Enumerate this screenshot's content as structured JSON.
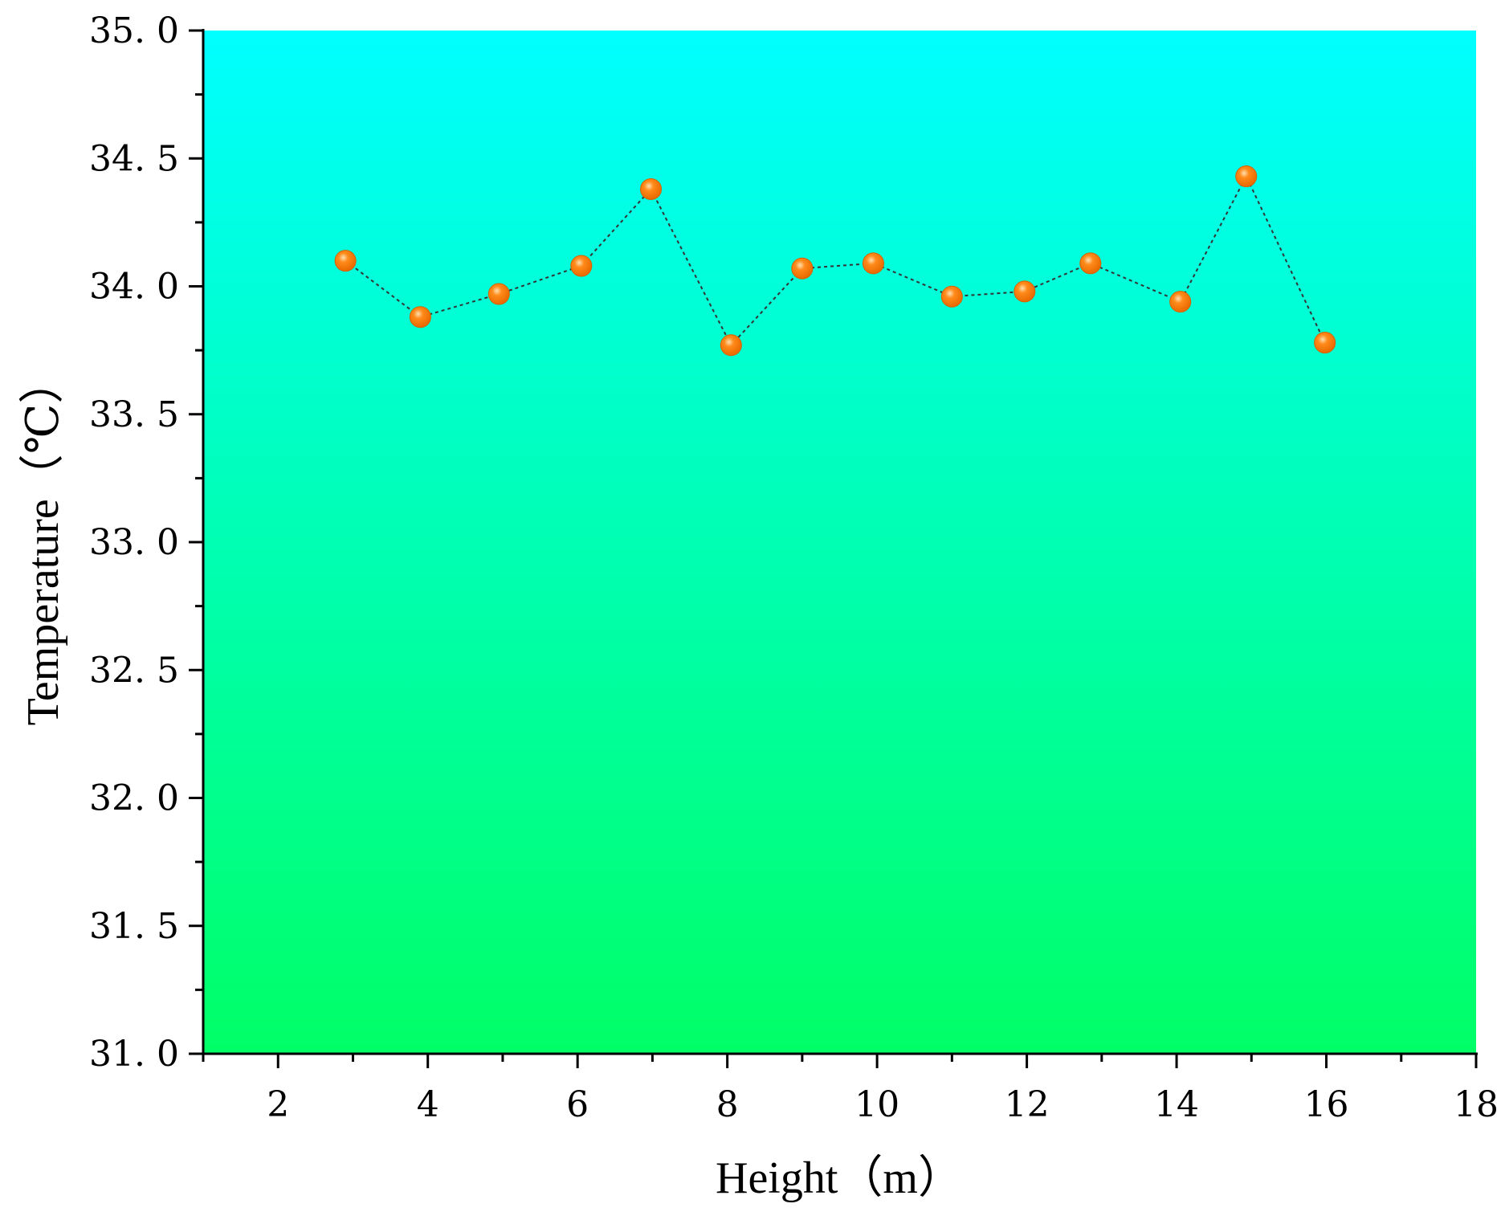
{
  "chart_data": {
    "type": "scatter",
    "xlabel": "Height（m）",
    "ylabel": "Temperature（℃）",
    "xlim": [
      1,
      18
    ],
    "ylim": [
      31.0,
      35.0
    ],
    "x_ticks": [
      2,
      4,
      6,
      8,
      10,
      12,
      14,
      16,
      18
    ],
    "x_tick_labels": [
      "2",
      "4",
      "6",
      "8",
      "10",
      "12",
      "14",
      "16",
      "18"
    ],
    "y_ticks": [
      31.0,
      31.5,
      32.0,
      32.5,
      33.0,
      33.5,
      34.0,
      34.5,
      35.0
    ],
    "y_tick_labels": [
      "31. 0",
      "31. 5",
      "32. 0",
      "32. 5",
      "33. 0",
      "33. 5",
      "34. 0",
      "34. 5",
      "35. 0"
    ],
    "grid": false,
    "connector": "dotted",
    "series": [
      {
        "x": [
          2.9,
          3.9,
          4.95,
          6.05,
          6.98,
          8.05,
          9.0,
          9.95,
          11.0,
          11.97,
          12.85,
          14.05,
          14.93,
          15.98
        ],
        "y": [
          34.1,
          33.88,
          33.97,
          34.08,
          34.38,
          33.77,
          34.07,
          34.09,
          33.96,
          33.98,
          34.09,
          33.94,
          34.43,
          33.78
        ]
      }
    ],
    "colors": {
      "background_top": "#00ffff",
      "background_bottom": "#00ff66",
      "marker": "#ff8a1a",
      "marker_highlight": "#ffe0b0",
      "connector": "#333333",
      "axis": "#000000"
    }
  }
}
